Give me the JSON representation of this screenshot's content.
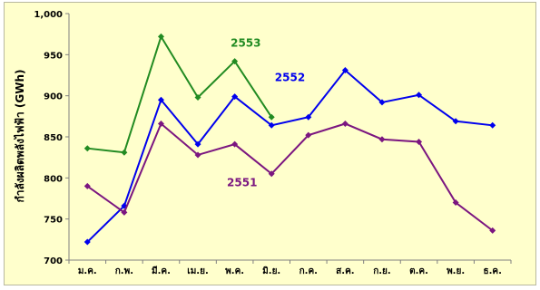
{
  "chart_data": {
    "type": "line",
    "title": "",
    "xlabel": "",
    "ylabel": "กำลังผลิตพลังไฟฟ้า (GWh)",
    "ylim": [
      700,
      1000
    ],
    "yticks": [
      "700",
      "750",
      "800",
      "850",
      "900",
      "950",
      "1,000"
    ],
    "categories": [
      "ม.ค.",
      "ก.พ.",
      "มี.ค.",
      "เม.ย.",
      "พ.ค.",
      "มิ.ย.",
      "ก.ค.",
      "ส.ค.",
      "ก.ย.",
      "ต.ค.",
      "พ.ย.",
      "ธ.ค."
    ],
    "grid": false,
    "series": [
      {
        "name": "2553",
        "color": "#228b22",
        "values": [
          836,
          831,
          972,
          898,
          942,
          874,
          null,
          null,
          null,
          null,
          null,
          null
        ]
      },
      {
        "name": "2552",
        "color": "#0000ee",
        "values": [
          722,
          766,
          895,
          841,
          899,
          864,
          874,
          931,
          892,
          901,
          869,
          864
        ]
      },
      {
        "name": "2551",
        "color": "#7b1680",
        "values": [
          790,
          758,
          866,
          828,
          841,
          805,
          852,
          866,
          847,
          844,
          770,
          736
        ]
      }
    ],
    "series_label_anchor": [
      4.3,
      5.5,
      4.2
    ]
  }
}
